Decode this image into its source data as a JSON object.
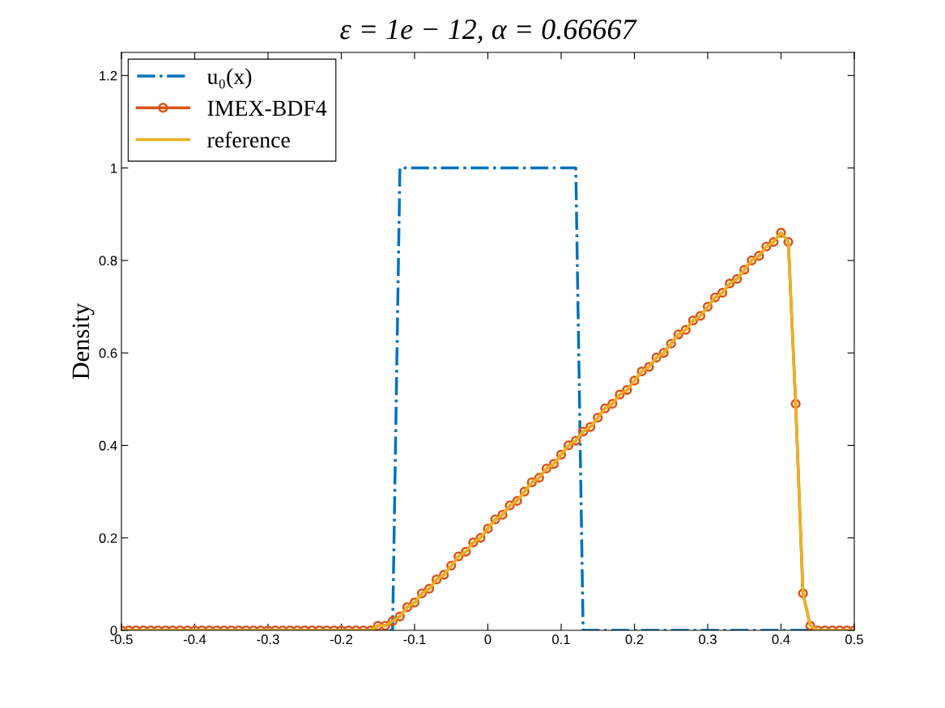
{
  "chart_data": {
    "type": "line",
    "title": "ε = 1e − 12, α = 0.66667",
    "ylabel": "Density",
    "x": [
      -0.5,
      -0.49,
      -0.48,
      -0.47,
      -0.46,
      -0.45,
      -0.44,
      -0.43,
      -0.42,
      -0.41,
      -0.4,
      -0.39,
      -0.38,
      -0.37,
      -0.36,
      -0.35,
      -0.34,
      -0.33,
      -0.32,
      -0.31,
      -0.3,
      -0.29,
      -0.28,
      -0.27,
      -0.26,
      -0.25,
      -0.24,
      -0.23,
      -0.22,
      -0.21,
      -0.2,
      -0.19,
      -0.18,
      -0.17,
      -0.16,
      -0.15,
      -0.14,
      -0.13,
      -0.12,
      -0.11,
      -0.1,
      -0.09,
      -0.08,
      -0.07,
      -0.06,
      -0.05,
      -0.04,
      -0.03,
      -0.02,
      -0.01,
      0,
      0.01,
      0.02,
      0.03,
      0.04,
      0.05,
      0.06,
      0.07,
      0.08,
      0.09,
      0.1,
      0.11,
      0.12,
      0.13,
      0.14,
      0.15,
      0.16,
      0.17,
      0.18,
      0.19,
      0.2,
      0.21,
      0.22,
      0.23,
      0.24,
      0.25,
      0.26,
      0.27,
      0.28,
      0.29,
      0.3,
      0.31,
      0.32,
      0.33,
      0.34,
      0.35,
      0.36,
      0.37,
      0.38,
      0.39,
      0.4,
      0.41,
      0.42,
      0.43,
      0.44,
      0.45,
      0.46,
      0.47,
      0.48,
      0.49,
      0.5
    ],
    "series": [
      {
        "name": "u₀(x)",
        "color": "#0072bd",
        "line_style": "dashdot",
        "marker": "none",
        "x": [
          -0.5,
          -0.13,
          -0.12,
          0.12,
          0.13,
          0.5
        ],
        "values": [
          0,
          0,
          1,
          1,
          0,
          0
        ]
      },
      {
        "name": "IMEX-BDF4",
        "color": "#d95319",
        "line_style": "solid",
        "marker": "circle",
        "values": [
          0,
          0,
          0,
          0,
          0,
          0,
          0,
          0,
          0,
          0,
          0,
          0,
          0,
          0,
          0,
          0,
          0,
          0,
          0,
          0,
          0,
          0,
          0,
          0,
          0,
          0,
          0,
          0,
          0,
          0,
          0,
          0,
          0,
          0,
          0,
          0.01,
          0.01,
          0.02,
          0.03,
          0.05,
          0.06,
          0.08,
          0.09,
          0.11,
          0.12,
          0.14,
          0.16,
          0.17,
          0.19,
          0.2,
          0.22,
          0.24,
          0.25,
          0.27,
          0.28,
          0.3,
          0.32,
          0.33,
          0.35,
          0.36,
          0.38,
          0.4,
          0.41,
          0.43,
          0.44,
          0.46,
          0.48,
          0.49,
          0.51,
          0.52,
          0.54,
          0.56,
          0.57,
          0.59,
          0.6,
          0.62,
          0.64,
          0.65,
          0.67,
          0.68,
          0.7,
          0.72,
          0.73,
          0.75,
          0.76,
          0.78,
          0.8,
          0.81,
          0.83,
          0.84,
          0.86,
          0.84,
          0.49,
          0.08,
          0.01,
          0,
          0,
          0,
          0,
          0,
          0
        ]
      },
      {
        "name": "reference",
        "color": "#edb120",
        "line_style": "solid",
        "marker": "none",
        "values": [
          0,
          0,
          0,
          0,
          0,
          0,
          0,
          0,
          0,
          0,
          0,
          0,
          0,
          0,
          0,
          0,
          0,
          0,
          0,
          0,
          0,
          0,
          0,
          0,
          0,
          0,
          0,
          0,
          0,
          0,
          0,
          0,
          0,
          0,
          0,
          0.01,
          0.01,
          0.02,
          0.03,
          0.05,
          0.06,
          0.08,
          0.09,
          0.11,
          0.12,
          0.14,
          0.16,
          0.17,
          0.19,
          0.2,
          0.22,
          0.24,
          0.25,
          0.27,
          0.28,
          0.3,
          0.32,
          0.33,
          0.35,
          0.36,
          0.38,
          0.4,
          0.41,
          0.43,
          0.44,
          0.46,
          0.48,
          0.49,
          0.51,
          0.52,
          0.54,
          0.56,
          0.57,
          0.59,
          0.6,
          0.62,
          0.64,
          0.65,
          0.67,
          0.68,
          0.7,
          0.72,
          0.73,
          0.75,
          0.76,
          0.78,
          0.8,
          0.81,
          0.83,
          0.84,
          0.86,
          0.84,
          0.49,
          0.08,
          0.01,
          0,
          0,
          0,
          0,
          0,
          0
        ]
      }
    ],
    "xlim": [
      -0.5,
      0.5
    ],
    "xticks": [
      {
        "value": -0.5,
        "label": "-0.5"
      },
      {
        "value": -0.4,
        "label": "-0.4"
      },
      {
        "value": -0.3,
        "label": "-0.3"
      },
      {
        "value": -0.2,
        "label": "-0.2"
      },
      {
        "value": -0.1,
        "label": "-0.1"
      },
      0,
      0.1,
      0.2,
      0.3,
      0.4,
      0.5
    ],
    "ylim": [
      0,
      1.25
    ],
    "yticks": [
      0,
      0.2,
      0.4,
      0.6,
      0.8,
      1,
      1.2
    ],
    "grid": false,
    "legend": "top left"
  }
}
